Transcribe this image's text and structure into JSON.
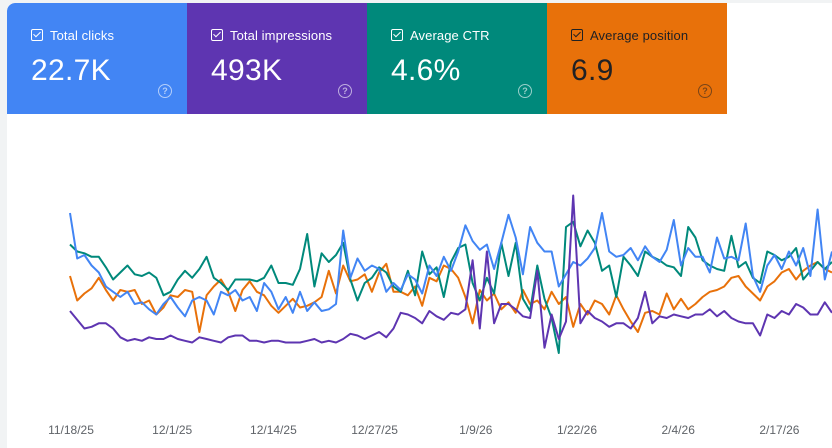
{
  "metrics": [
    {
      "label": "Total clicks",
      "value": "22.7K",
      "color": "#4285f4",
      "text_color": "#ffffff",
      "icon": "help-icon"
    },
    {
      "label": "Total impressions",
      "value": "493K",
      "color": "#5e35b1",
      "text_color": "#ffffff",
      "icon": "help-icon"
    },
    {
      "label": "Average CTR",
      "value": "4.6%",
      "color": "#00897b",
      "text_color": "#ffffff",
      "icon": "help-icon"
    },
    {
      "label": "Average position",
      "value": "6.9",
      "color": "#e8710a",
      "text_color": "#202124",
      "icon": "help-icon"
    }
  ],
  "chart_data": {
    "type": "line",
    "x_tick_labels": [
      "11/18/25",
      "12/1/25",
      "12/14/25",
      "12/27/25",
      "1/9/26",
      "1/22/26",
      "2/4/26",
      "2/17/26"
    ],
    "grid": false,
    "ylim": [
      0,
      1
    ],
    "series": [
      {
        "name": "Total clicks",
        "color": "#4285f4",
        "values": [
          0.8,
          0.54,
          0.56,
          0.5,
          0.46,
          0.38,
          0.35,
          0.32,
          0.35,
          0.28,
          0.29,
          0.25,
          0.22,
          0.28,
          0.32,
          0.26,
          0.21,
          0.3,
          0.32,
          0.3,
          0.22,
          0.35,
          0.33,
          0.36,
          0.3,
          0.32,
          0.24,
          0.4,
          0.35,
          0.25,
          0.32,
          0.23,
          0.35,
          0.24,
          0.29,
          0.24,
          0.25,
          0.28,
          0.7,
          0.43,
          0.54,
          0.47,
          0.5,
          0.48,
          0.35,
          0.4,
          0.36,
          0.45,
          0.42,
          0.34,
          0.5,
          0.44,
          0.55,
          0.47,
          0.58,
          0.73,
          0.64,
          0.59,
          0.62,
          0.48,
          0.63,
          0.79,
          0.66,
          0.45,
          0.72,
          0.63,
          0.58,
          0.58,
          0.38,
          0.45,
          0.52,
          0.5,
          0.54,
          0.6,
          0.8,
          0.58,
          0.55,
          0.56,
          0.6,
          0.53,
          0.61,
          0.55,
          0.52,
          0.59,
          0.76,
          0.5,
          0.6,
          0.55,
          0.55,
          0.46,
          0.66,
          0.54,
          0.55,
          0.53,
          0.74,
          0.44,
          0.35,
          0.5,
          0.56,
          0.48,
          0.58,
          0.5,
          0.6,
          0.44,
          0.82,
          0.42,
          0.58
        ]
      },
      {
        "name": "Total impressions",
        "color": "#5e35b1",
        "values": [
          0.24,
          0.19,
          0.14,
          0.15,
          0.17,
          0.17,
          0.14,
          0.09,
          0.07,
          0.08,
          0.07,
          0.09,
          0.08,
          0.08,
          0.1,
          0.08,
          0.07,
          0.06,
          0.09,
          0.08,
          0.07,
          0.06,
          0.09,
          0.1,
          0.1,
          0.07,
          0.07,
          0.06,
          0.07,
          0.07,
          0.06,
          0.06,
          0.06,
          0.07,
          0.08,
          0.06,
          0.07,
          0.06,
          0.08,
          0.11,
          0.1,
          0.08,
          0.1,
          0.12,
          0.09,
          0.14,
          0.23,
          0.22,
          0.2,
          0.17,
          0.24,
          0.21,
          0.19,
          0.23,
          0.22,
          0.25,
          0.53,
          0.14,
          0.58,
          0.17,
          0.28,
          0.28,
          0.25,
          0.21,
          0.2,
          0.47,
          0.03,
          0.22,
          0.08,
          0.18,
          0.9,
          0.17,
          0.24,
          0.2,
          0.18,
          0.15,
          0.17,
          0.17,
          0.14,
          0.2,
          0.35,
          0.17,
          0.21,
          0.2,
          0.22,
          0.21,
          0.2,
          0.22,
          0.22,
          0.25,
          0.21,
          0.24,
          0.2,
          0.18,
          0.17,
          0.17,
          0.1,
          0.22,
          0.2,
          0.24,
          0.22,
          0.28,
          0.26,
          0.22,
          0.22,
          0.29,
          0.23
        ]
      },
      {
        "name": "Average CTR",
        "color": "#00897b",
        "values": [
          0.62,
          0.58,
          0.57,
          0.55,
          0.55,
          0.49,
          0.42,
          0.46,
          0.5,
          0.45,
          0.44,
          0.46,
          0.43,
          0.33,
          0.35,
          0.42,
          0.47,
          0.43,
          0.48,
          0.55,
          0.43,
          0.4,
          0.36,
          0.42,
          0.42,
          0.42,
          0.41,
          0.43,
          0.5,
          0.4,
          0.4,
          0.39,
          0.48,
          0.68,
          0.38,
          0.57,
          0.52,
          0.56,
          0.63,
          0.42,
          0.3,
          0.4,
          0.43,
          0.49,
          0.46,
          0.38,
          0.35,
          0.47,
          0.33,
          0.58,
          0.45,
          0.49,
          0.32,
          0.52,
          0.6,
          0.62,
          0.4,
          0.3,
          0.43,
          0.34,
          0.63,
          0.44,
          0.63,
          0.31,
          0.24,
          0.5,
          0.31,
          0.2,
          0.0,
          0.72,
          0.75,
          0.61,
          0.7,
          0.63,
          0.47,
          0.5,
          0.32,
          0.55,
          0.5,
          0.44,
          0.58,
          0.55,
          0.53,
          0.5,
          0.49,
          0.44,
          0.72,
          0.66,
          0.53,
          0.5,
          0.48,
          0.47,
          0.67,
          0.49,
          0.52,
          0.43,
          0.4,
          0.58,
          0.56,
          0.53,
          0.55,
          0.6,
          0.42,
          0.47,
          0.52,
          0.48,
          0.52
        ]
      },
      {
        "name": "Average position",
        "color": "#e8710a",
        "values": [
          0.44,
          0.3,
          0.34,
          0.37,
          0.43,
          0.36,
          0.3,
          0.36,
          0.35,
          0.36,
          0.28,
          0.3,
          0.22,
          0.26,
          0.33,
          0.32,
          0.36,
          0.35,
          0.12,
          0.33,
          0.38,
          0.42,
          0.35,
          0.24,
          0.36,
          0.41,
          0.35,
          0.33,
          0.27,
          0.23,
          0.27,
          0.31,
          0.26,
          0.27,
          0.29,
          0.32,
          0.47,
          0.34,
          0.5,
          0.41,
          0.42,
          0.45,
          0.35,
          0.46,
          0.51,
          0.35,
          0.35,
          0.33,
          0.38,
          0.27,
          0.43,
          0.41,
          0.5,
          0.48,
          0.43,
          0.32,
          0.17,
          0.36,
          0.3,
          0.34,
          0.25,
          0.29,
          0.23,
          0.36,
          0.28,
          0.3,
          0.25,
          0.35,
          0.28,
          0.32,
          0.15,
          0.28,
          0.22,
          0.3,
          0.28,
          0.22,
          0.33,
          0.25,
          0.18,
          0.12,
          0.23,
          0.24,
          0.22,
          0.34,
          0.25,
          0.31,
          0.25,
          0.28,
          0.32,
          0.35,
          0.36,
          0.38,
          0.43,
          0.44,
          0.38,
          0.34,
          0.3,
          0.38,
          0.41,
          0.46,
          0.48,
          0.42,
          0.47,
          0.5,
          0.52,
          0.48,
          0.46
        ]
      }
    ]
  }
}
